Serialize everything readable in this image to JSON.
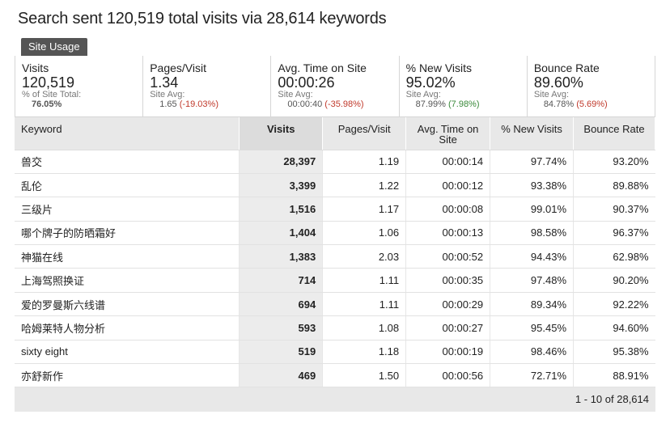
{
  "title": "Search sent 120,519 total visits via 28,614 keywords",
  "tab_label": "Site Usage",
  "metrics": [
    {
      "label": "Visits",
      "value": "120,519",
      "sub": "% of Site Total:",
      "avg": "76.05%",
      "delta": "",
      "delta_sign": ""
    },
    {
      "label": "Pages/Visit",
      "value": "1.34",
      "sub": "Site Avg:",
      "avg": "1.65",
      "delta": "(-19.03%)",
      "delta_sign": "neg"
    },
    {
      "label": "Avg. Time on Site",
      "value": "00:00:26",
      "sub": "Site Avg:",
      "avg": "00:00:40",
      "delta": "(-35.98%)",
      "delta_sign": "neg"
    },
    {
      "label": "% New Visits",
      "value": "95.02%",
      "sub": "Site Avg:",
      "avg": "87.99%",
      "delta": "(7.98%)",
      "delta_sign": "pos"
    },
    {
      "label": "Bounce Rate",
      "value": "89.60%",
      "sub": "Site Avg:",
      "avg": "84.78%",
      "delta": "(5.69%)",
      "delta_sign": "neg"
    }
  ],
  "columns": [
    "Keyword",
    "Visits",
    "Pages/Visit",
    "Avg. Time on Site",
    "% New Visits",
    "Bounce Rate"
  ],
  "rows": [
    {
      "keyword": "兽交",
      "visits": "28,397",
      "ppv": "1.19",
      "time": "00:00:14",
      "new": "97.74%",
      "bounce": "93.20%"
    },
    {
      "keyword": "乱伦",
      "visits": "3,399",
      "ppv": "1.22",
      "time": "00:00:12",
      "new": "93.38%",
      "bounce": "89.88%"
    },
    {
      "keyword": "三级片",
      "visits": "1,516",
      "ppv": "1.17",
      "time": "00:00:08",
      "new": "99.01%",
      "bounce": "90.37%"
    },
    {
      "keyword": "哪个牌子的防晒霜好",
      "visits": "1,404",
      "ppv": "1.06",
      "time": "00:00:13",
      "new": "98.58%",
      "bounce": "96.37%"
    },
    {
      "keyword": "神猫在线",
      "visits": "1,383",
      "ppv": "2.03",
      "time": "00:00:52",
      "new": "94.43%",
      "bounce": "62.98%"
    },
    {
      "keyword": "上海驾照换证",
      "visits": "714",
      "ppv": "1.11",
      "time": "00:00:35",
      "new": "97.48%",
      "bounce": "90.20%"
    },
    {
      "keyword": "爱的罗曼斯六线谱",
      "visits": "694",
      "ppv": "1.11",
      "time": "00:00:29",
      "new": "89.34%",
      "bounce": "92.22%"
    },
    {
      "keyword": "哈姆莱特人物分析",
      "visits": "593",
      "ppv": "1.08",
      "time": "00:00:27",
      "new": "95.45%",
      "bounce": "94.60%"
    },
    {
      "keyword": "sixty eight",
      "visits": "519",
      "ppv": "1.18",
      "time": "00:00:19",
      "new": "98.46%",
      "bounce": "95.38%"
    },
    {
      "keyword": "亦舒新作",
      "visits": "469",
      "ppv": "1.50",
      "time": "00:00:56",
      "new": "72.71%",
      "bounce": "88.91%"
    }
  ],
  "pagination": "1 - 10 of 28,614"
}
